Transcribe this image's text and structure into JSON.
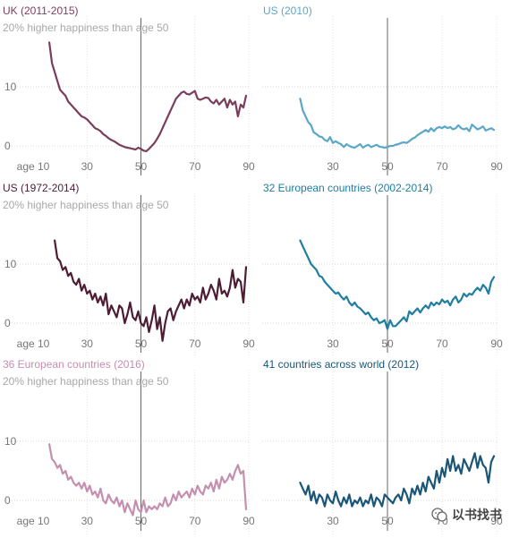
{
  "chart_data": [
    {
      "type": "line",
      "title": "UK (2011-2015)",
      "subtitle": "20% higher happiness than age 50",
      "color": "#7b3d5c",
      "xlim": [
        10,
        90
      ],
      "ylim": [
        -3,
        20
      ],
      "xticks": [
        "age 10",
        "30",
        "50",
        "70",
        "90"
      ],
      "yticks": [
        "10",
        "0"
      ],
      "x": [
        16,
        17,
        18,
        19,
        20,
        21,
        22,
        23,
        24,
        25,
        26,
        27,
        28,
        29,
        30,
        31,
        32,
        33,
        34,
        35,
        36,
        37,
        38,
        39,
        40,
        41,
        42,
        43,
        44,
        45,
        46,
        47,
        48,
        49,
        50,
        51,
        52,
        53,
        54,
        55,
        56,
        57,
        58,
        59,
        60,
        61,
        62,
        63,
        64,
        65,
        66,
        67,
        68,
        69,
        70,
        71,
        72,
        73,
        74,
        75,
        76,
        77,
        78,
        79,
        80,
        81,
        82,
        83,
        84,
        85,
        86,
        87,
        88,
        89
      ],
      "y": [
        17.5,
        14,
        12.5,
        11,
        9.5,
        9,
        8.5,
        7.5,
        7,
        6.5,
        6,
        5.5,
        5,
        4.8,
        4.5,
        4,
        3.5,
        3,
        2.8,
        2.5,
        2,
        1.7,
        1.3,
        1,
        0.8,
        0.5,
        0.2,
        0,
        -0.2,
        -0.3,
        -0.4,
        -0.5,
        -0.6,
        -0.3,
        -0.5,
        -0.8,
        -0.9,
        -0.5,
        0,
        0.5,
        1.2,
        2,
        3,
        4,
        5,
        6,
        7,
        8,
        8.5,
        9,
        9.2,
        8.8,
        8.7,
        9,
        9.3,
        8,
        7.8,
        8,
        8.2,
        8.1,
        7.5,
        7.2,
        7.8,
        7,
        7.5,
        8,
        6.5,
        7.8,
        7,
        7.5,
        5,
        7,
        6.5,
        8.5
      ]
    },
    {
      "type": "line",
      "title": "US (2010)",
      "color": "#5ba7c9",
      "xlim": [
        10,
        90
      ],
      "ylim": [
        -3,
        20
      ],
      "xticks": [
        "30",
        "50",
        "70",
        "90"
      ],
      "x": [
        18,
        19,
        20,
        21,
        22,
        23,
        24,
        25,
        26,
        27,
        28,
        29,
        30,
        31,
        32,
        33,
        34,
        35,
        36,
        37,
        38,
        39,
        40,
        41,
        42,
        43,
        44,
        45,
        46,
        47,
        48,
        49,
        50,
        51,
        52,
        53,
        54,
        55,
        56,
        57,
        58,
        59,
        60,
        61,
        62,
        63,
        64,
        65,
        66,
        67,
        68,
        69,
        70,
        71,
        72,
        73,
        74,
        75,
        76,
        77,
        78,
        79,
        80,
        81,
        82,
        83,
        84,
        85,
        86,
        87,
        88,
        89
      ],
      "y": [
        8,
        6,
        5,
        4,
        3.5,
        2.3,
        2,
        1.6,
        1.5,
        1,
        0.8,
        1.5,
        0.5,
        0.8,
        0.5,
        0.3,
        -0.2,
        0.3,
        0,
        -0.2,
        -0.3,
        0,
        0.3,
        -0.3,
        0,
        0.2,
        -0.2,
        0,
        0.2,
        -0.1,
        -0.2,
        -0.3,
        -0.2,
        0,
        0,
        0.2,
        0.3,
        0.5,
        0.6,
        0.5,
        0.8,
        1.2,
        1.4,
        1.8,
        2.1,
        2.4,
        2.7,
        2.4,
        3,
        2.5,
        3,
        3.2,
        3,
        3.3,
        3,
        3.2,
        2.8,
        3,
        3.5,
        3,
        2.8,
        3,
        2.5,
        3.6,
        3.2,
        2.8,
        3,
        3.3,
        2.6,
        2.8,
        3,
        2.7
      ]
    },
    {
      "type": "line",
      "title": "US (1972-2014)",
      "subtitle": "20% higher happiness than age 50",
      "color": "#4e1d34",
      "xlim": [
        10,
        90
      ],
      "ylim": [
        -3,
        20
      ],
      "xticks": [
        "age 10",
        "30",
        "50",
        "70",
        "90"
      ],
      "yticks": [
        "10",
        "0"
      ],
      "x": [
        18,
        19,
        20,
        21,
        22,
        23,
        24,
        25,
        26,
        27,
        28,
        29,
        30,
        31,
        32,
        33,
        34,
        35,
        36,
        37,
        38,
        39,
        40,
        41,
        42,
        43,
        44,
        45,
        46,
        47,
        48,
        49,
        50,
        51,
        52,
        53,
        54,
        55,
        56,
        57,
        58,
        59,
        60,
        61,
        62,
        63,
        64,
        65,
        66,
        67,
        68,
        69,
        70,
        71,
        72,
        73,
        74,
        75,
        76,
        77,
        78,
        79,
        80,
        81,
        82,
        83,
        84,
        85,
        86,
        87,
        88,
        89
      ],
      "y": [
        14,
        11,
        10.5,
        9,
        9.5,
        8,
        8.5,
        7,
        6.5,
        7.5,
        5.5,
        6.5,
        5,
        5.5,
        4,
        5,
        3.5,
        4.5,
        3,
        5,
        1.5,
        3,
        2,
        1,
        3,
        2.5,
        0,
        1.5,
        3.5,
        1,
        0.5,
        2,
        0,
        -0.5,
        1,
        -1.5,
        0.5,
        3,
        -1,
        1,
        -3,
        0,
        2,
        2.5,
        0.5,
        2,
        3,
        4,
        2.5,
        4,
        3,
        5,
        4,
        4.5,
        3.5,
        6,
        4,
        5,
        6.5,
        5.5,
        4,
        7.5,
        5,
        5.5,
        4.5,
        6,
        9,
        6,
        7.5,
        7,
        3.5,
        9.5
      ]
    },
    {
      "type": "line",
      "title": "32 European countries (2002-2014)",
      "color": "#1f7ea1",
      "xlim": [
        10,
        90
      ],
      "ylim": [
        -3,
        20
      ],
      "xticks": [
        "30",
        "50",
        "70",
        "90"
      ],
      "x": [
        18,
        19,
        20,
        21,
        22,
        23,
        24,
        25,
        26,
        27,
        28,
        29,
        30,
        31,
        32,
        33,
        34,
        35,
        36,
        37,
        38,
        39,
        40,
        41,
        42,
        43,
        44,
        45,
        46,
        47,
        48,
        49,
        50,
        51,
        52,
        53,
        54,
        55,
        56,
        57,
        58,
        59,
        60,
        61,
        62,
        63,
        64,
        65,
        66,
        67,
        68,
        69,
        70,
        71,
        72,
        73,
        74,
        75,
        76,
        77,
        78,
        79,
        80,
        81,
        82,
        83,
        84,
        85,
        86,
        87,
        88,
        89
      ],
      "y": [
        14,
        13,
        12,
        11,
        10,
        9.5,
        9,
        8,
        7.8,
        7,
        6.5,
        6,
        5.5,
        5,
        5.2,
        4.5,
        4,
        4.5,
        3.5,
        3,
        3.5,
        2.8,
        2.5,
        2,
        1.5,
        1.8,
        1,
        0.5,
        0.8,
        0,
        0.2,
        0.5,
        -1,
        0.5,
        -0.5,
        -0.5,
        0,
        0.5,
        1,
        0.3,
        2,
        1.5,
        2,
        2.5,
        1.8,
        2.5,
        3,
        2.5,
        3.5,
        3,
        3.5,
        3.2,
        4,
        3.5,
        3.8,
        3,
        4,
        4.5,
        3.5,
        4,
        5,
        4.5,
        5,
        4.8,
        5.5,
        6,
        5.5,
        6.5,
        6,
        5,
        7,
        7.8
      ]
    },
    {
      "type": "line",
      "title": "36 European countries (2016)",
      "subtitle": "20% higher happiness than age 50",
      "color": "#c58fb0",
      "xlim": [
        10,
        90
      ],
      "ylim": [
        -3,
        20
      ],
      "xticks": [
        "age 10",
        "30",
        "50",
        "70",
        "90"
      ],
      "yticks": [
        "10",
        "0"
      ],
      "x": [
        16,
        17,
        18,
        19,
        20,
        21,
        22,
        23,
        24,
        25,
        26,
        27,
        28,
        29,
        30,
        31,
        32,
        33,
        34,
        35,
        36,
        37,
        38,
        39,
        40,
        41,
        42,
        43,
        44,
        45,
        46,
        47,
        48,
        49,
        50,
        51,
        52,
        53,
        54,
        55,
        56,
        57,
        58,
        59,
        60,
        61,
        62,
        63,
        64,
        65,
        66,
        67,
        68,
        69,
        70,
        71,
        72,
        73,
        74,
        75,
        76,
        77,
        78,
        79,
        80,
        81,
        82,
        83,
        84,
        85,
        86,
        87,
        88,
        89
      ],
      "y": [
        9.5,
        7,
        6.5,
        5.5,
        6,
        4.5,
        5,
        3.5,
        4,
        3,
        2.5,
        3,
        2,
        3,
        1.5,
        2.5,
        1,
        1.5,
        0.5,
        2,
        0,
        -0.5,
        1,
        0,
        -0.5,
        0.5,
        -1,
        0,
        -2,
        -0.5,
        -1.5,
        -2.5,
        0,
        -1.5,
        -2,
        0,
        -2,
        -1,
        -1.5,
        -1,
        -1.5,
        -0.5,
        -1,
        0.5,
        -1,
        -0.5,
        1,
        0,
        1.5,
        0.5,
        1,
        1.5,
        0.5,
        2,
        1,
        2.5,
        1.5,
        1,
        2.5,
        2,
        3,
        1.5,
        3.5,
        2,
        4,
        3,
        3.5,
        4.5,
        3.5,
        5,
        6,
        4.5,
        5,
        -1.5
      ]
    },
    {
      "type": "line",
      "title": "41 countries across world (2012)",
      "color": "#1a5677",
      "xlim": [
        10,
        90
      ],
      "ylim": [
        -3,
        20
      ],
      "xticks": [
        "30",
        "50",
        "70",
        "90"
      ],
      "x": [
        18,
        19,
        20,
        21,
        22,
        23,
        24,
        25,
        26,
        27,
        28,
        29,
        30,
        31,
        32,
        33,
        34,
        35,
        36,
        37,
        38,
        39,
        40,
        41,
        42,
        43,
        44,
        45,
        46,
        47,
        48,
        49,
        50,
        51,
        52,
        53,
        54,
        55,
        56,
        57,
        58,
        59,
        60,
        61,
        62,
        63,
        64,
        65,
        66,
        67,
        68,
        69,
        70,
        71,
        72,
        73,
        74,
        75,
        76,
        77,
        78,
        79,
        80,
        81,
        82,
        83,
        84,
        85,
        86,
        87,
        88,
        89
      ],
      "y": [
        3,
        2,
        1,
        2.5,
        0,
        1.5,
        -0.5,
        1,
        0.5,
        -1,
        1,
        0,
        -0.5,
        1.5,
        0,
        -1,
        0.5,
        -0.5,
        1,
        -1,
        0,
        -0.5,
        0.5,
        -1,
        0,
        -0.5,
        1,
        -1,
        0.5,
        0,
        -1,
        1,
        0.5,
        0,
        -0.5,
        0.5,
        1,
        0,
        2,
        1,
        -0.5,
        2,
        1,
        2.5,
        1,
        3,
        1.5,
        4,
        3,
        2,
        5,
        3,
        5.5,
        4,
        7,
        5,
        7.5,
        5,
        6,
        4.5,
        7,
        6,
        5,
        6.5,
        8,
        5.5,
        7.5,
        6,
        5.5,
        3,
        6.5,
        7.5
      ]
    }
  ],
  "watermark": {
    "text": "以书找书"
  }
}
